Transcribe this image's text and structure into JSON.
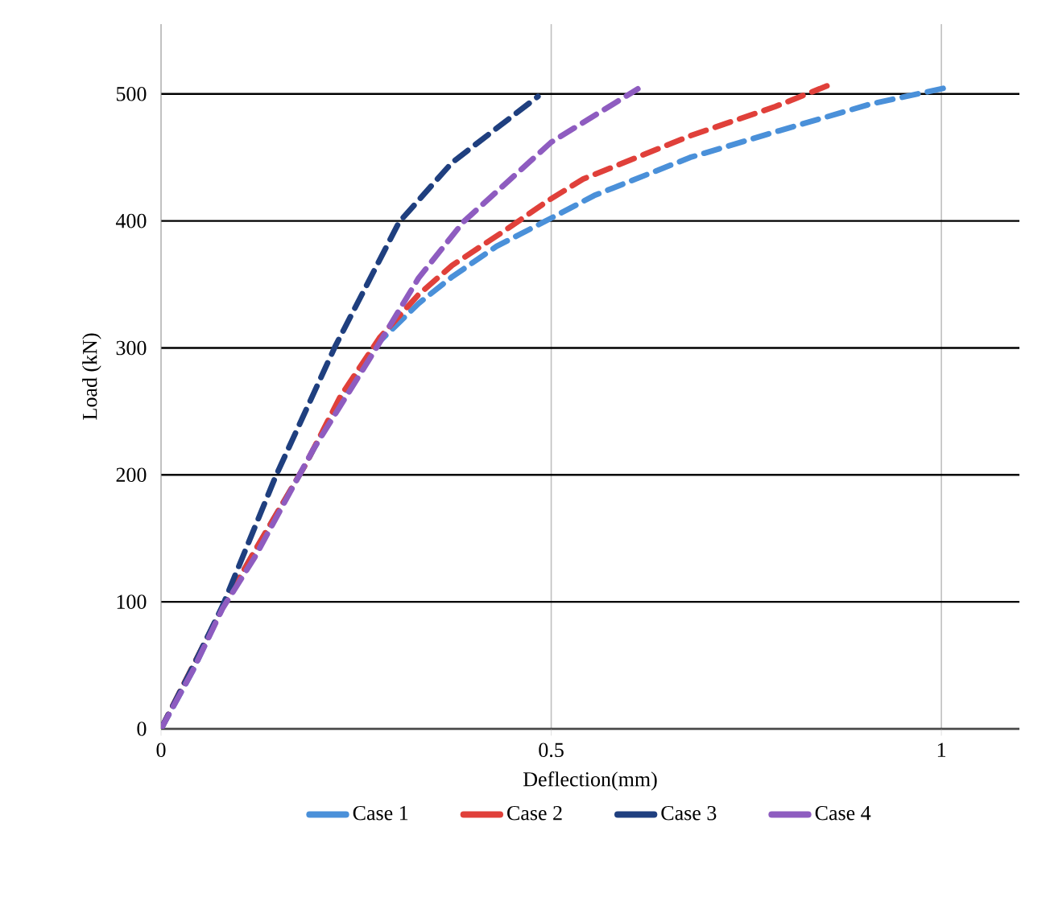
{
  "chart_data": {
    "type": "line",
    "xlabel": "Deflection(mm)",
    "ylabel": "Load (kN)",
    "xlim": [
      0,
      1.1
    ],
    "ylim": [
      0,
      555
    ],
    "xticks": [
      0,
      0.5,
      1
    ],
    "yticks": [
      0,
      100,
      200,
      300,
      400,
      500
    ],
    "grid": true,
    "legend": "bottom",
    "line_style": "dashed",
    "marker": "none",
    "series": [
      {
        "name": "Case 1",
        "color": "#4a90d9",
        "x": [
          0,
          0.04,
          0.08,
          0.12,
          0.185,
          0.23,
          0.28,
          0.33,
          0.373,
          0.43,
          0.49,
          0.555,
          0.678,
          0.792,
          0.909,
          1.007
        ],
        "values": [
          0,
          45,
          97,
          140,
          208,
          260,
          305,
          335,
          356,
          380,
          399,
          420,
          450,
          471,
          492,
          505
        ]
      },
      {
        "name": "Case 2",
        "color": "#e0403a",
        "x": [
          0,
          0.04,
          0.08,
          0.12,
          0.185,
          0.23,
          0.28,
          0.33,
          0.373,
          0.442,
          0.496,
          0.541,
          0.678,
          0.787,
          0.856
        ],
        "values": [
          0,
          null,
          97,
          140,
          208,
          262,
          308,
          342,
          365,
          393,
          416,
          433,
          467,
          490,
          507
        ]
      },
      {
        "name": "Case 3",
        "color": "#1f3f7f",
        "x": [
          0,
          0.04,
          0.079,
          0.147,
          0.223,
          0.305,
          0.373,
          0.483
        ],
        "values": [
          0,
          48,
          97,
          199,
          301,
          399,
          446,
          498
        ]
      },
      {
        "name": "Case 4",
        "color": "#8e5cc0",
        "x": [
          0,
          0.04,
          0.079,
          0.12,
          0.195,
          0.277,
          0.33,
          0.387,
          0.5,
          0.611
        ],
        "values": [
          0,
          45,
          95,
          135,
          220,
          301,
          355,
          399,
          462,
          504
        ]
      }
    ]
  }
}
